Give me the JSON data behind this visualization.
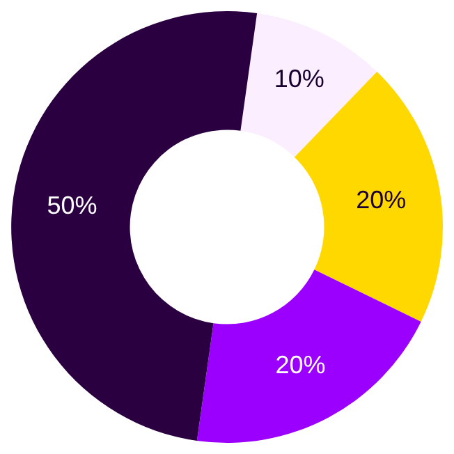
{
  "chart_data": {
    "type": "donut",
    "categories": [
      null,
      null,
      null,
      null
    ],
    "values": [
      10,
      20,
      20,
      50
    ],
    "colors": [
      "#fbeefe",
      "#ffd800",
      "#9b00ff",
      "#2a0040"
    ],
    "value_labels": [
      "10%",
      "20%",
      "20%",
      "50%"
    ],
    "legend": false
  }
}
